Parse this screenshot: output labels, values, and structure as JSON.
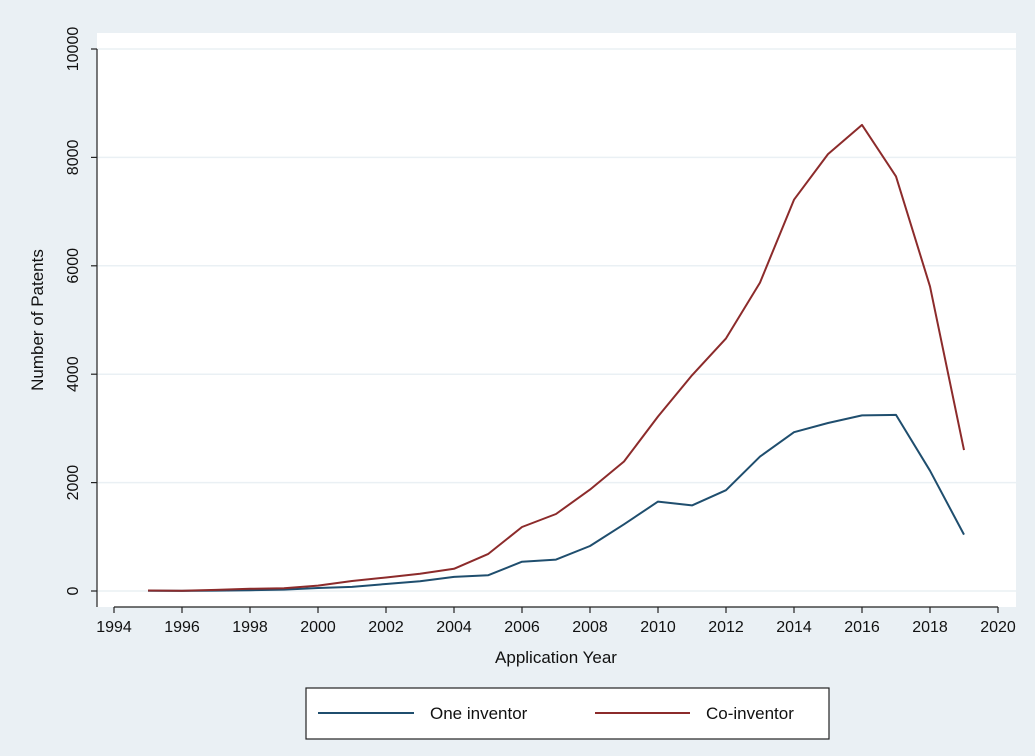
{
  "chart_data": {
    "type": "line",
    "title": "",
    "xlabel": "Application Year",
    "ylabel": "Number of Patents",
    "xlim": [
      1994,
      2020
    ],
    "ylim": [
      0,
      10000
    ],
    "xticks": [
      1994,
      1996,
      1998,
      2000,
      2002,
      2004,
      2006,
      2008,
      2010,
      2012,
      2014,
      2016,
      2018,
      2020
    ],
    "yticks": [
      0,
      2000,
      4000,
      6000,
      8000,
      10000
    ],
    "grid": true,
    "legend_position": "bottom",
    "x": [
      1995,
      1996,
      1997,
      1998,
      1999,
      2000,
      2001,
      2002,
      2003,
      2004,
      2005,
      2006,
      2007,
      2008,
      2009,
      2010,
      2011,
      2012,
      2013,
      2014,
      2015,
      2016,
      2017,
      2018,
      2019
    ],
    "series": [
      {
        "name": "One inventor",
        "color": "#1f4e6e",
        "values": [
          5,
          2,
          8,
          15,
          25,
          55,
          75,
          130,
          180,
          260,
          290,
          540,
          580,
          830,
          1230,
          1650,
          1580,
          1860,
          2480,
          2930,
          3100,
          3240,
          3250,
          2220,
          1040
        ]
      },
      {
        "name": "Co-inventor",
        "color": "#8c2b2b",
        "values": [
          10,
          5,
          20,
          40,
          50,
          100,
          185,
          250,
          320,
          410,
          680,
          1180,
          1420,
          1870,
          2390,
          3220,
          3980,
          4660,
          5690,
          7220,
          8060,
          8600,
          7650,
          5620,
          2600
        ]
      }
    ]
  }
}
